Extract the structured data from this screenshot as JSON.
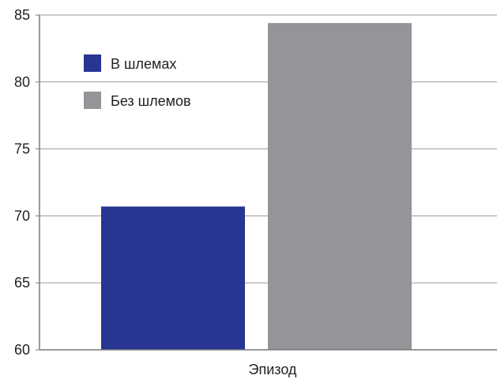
{
  "chart_data": {
    "type": "bar",
    "title": "",
    "xlabel": "Эпизод",
    "ylabel": "",
    "ylim": [
      60,
      85
    ],
    "yticks": [
      60,
      65,
      70,
      75,
      80,
      85
    ],
    "grid": true,
    "legend_position": "top-left",
    "categories": [
      "Эпизод"
    ],
    "series": [
      {
        "name": "В шлемах",
        "values": [
          70.7
        ],
        "color": "#283593"
      },
      {
        "name": "Без шлемов",
        "values": [
          84.4
        ],
        "color": "#939598"
      }
    ]
  }
}
